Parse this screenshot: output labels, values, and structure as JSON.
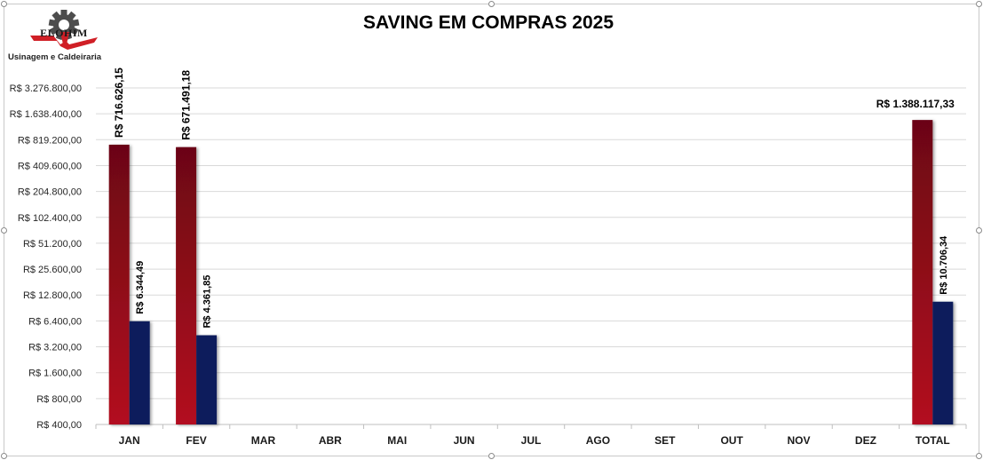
{
  "logo": {
    "name": "ELOHIM",
    "subtitle": "Usinagem e Caldeiraria"
  },
  "colors": {
    "saving_bar_top": "#6b0612",
    "saving_bar_bottom": "#b30c20",
    "secondary_bar": "#0a1f5c",
    "grid": "#d9d9d9"
  },
  "chart_data": {
    "type": "bar",
    "title": "SAVING EM COMPRAS 2025",
    "xlabel": "",
    "ylabel": "",
    "scale": "log2",
    "ylim": [
      400,
      3276800
    ],
    "yticks": [
      400,
      800,
      1600,
      3200,
      6400,
      12800,
      25600,
      51200,
      102400,
      204800,
      409600,
      819200,
      1638400,
      3276800
    ],
    "ytick_labels": [
      "R$ 400,00",
      "R$ 800,00",
      "R$ 1.600,00",
      "R$ 3.200,00",
      "R$ 6.400,00",
      "R$ 12.800,00",
      "R$ 25.600,00",
      "R$ 51.200,00",
      "R$ 102.400,00",
      "R$ 204.800,00",
      "R$ 409.600,00",
      "R$ 819.200,00",
      "R$ 1.638.400,00",
      "R$ 3.276.800,00"
    ],
    "categories": [
      "JAN",
      "FEV",
      "MAR",
      "ABR",
      "MAI",
      "JUN",
      "JUL",
      "AGO",
      "SET",
      "OUT",
      "NOV",
      "DEZ",
      "TOTAL"
    ],
    "grid": true,
    "legend": "none",
    "series": [
      {
        "values": [
          716626.15,
          671491.18,
          null,
          null,
          null,
          null,
          null,
          null,
          null,
          null,
          null,
          null,
          1388117.33
        ],
        "labels": [
          "R$ 716.626,15",
          "R$ 671.491,18",
          "",
          "",
          "",
          "",
          "",
          "",
          "",
          "",
          "",
          "",
          "R$ 1.388.117,33"
        ]
      },
      {
        "values": [
          6344.49,
          4361.85,
          null,
          null,
          null,
          null,
          null,
          null,
          null,
          null,
          null,
          null,
          10706.34
        ],
        "labels": [
          "R$ 6.344,49",
          "R$ 4.361,85",
          "",
          "",
          "",
          "",
          "",
          "",
          "",
          "",
          "",
          "",
          "R$ 10.706,34"
        ]
      }
    ]
  }
}
